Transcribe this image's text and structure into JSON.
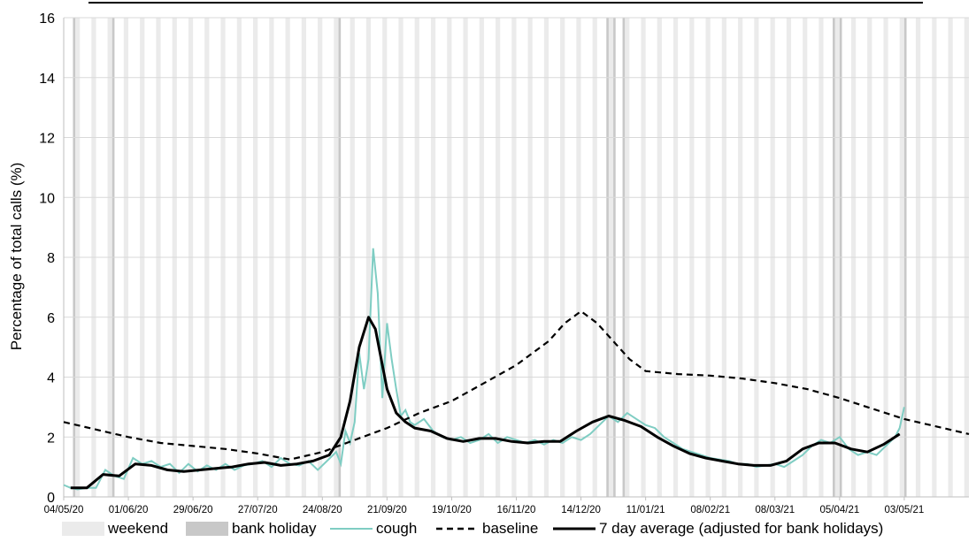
{
  "chart_data": {
    "type": "line",
    "title": "",
    "xlabel": "",
    "ylabel": "Percentage of total calls (%)",
    "ylim": [
      0,
      16
    ],
    "yticks": [
      0,
      2,
      4,
      6,
      8,
      10,
      12,
      14,
      16
    ],
    "xlim": [
      "2020-05-04",
      "2021-05-31"
    ],
    "xtick_labels": [
      "04/05/20",
      "01/06/20",
      "29/06/20",
      "27/07/20",
      "24/08/20",
      "21/09/20",
      "19/10/20",
      "16/11/20",
      "14/12/20",
      "11/01/21",
      "08/02/21",
      "08/03/21",
      "05/04/21",
      "03/05/21"
    ],
    "xtick_dates": [
      "2020-05-04",
      "2020-06-01",
      "2020-06-29",
      "2020-07-27",
      "2020-08-24",
      "2020-09-21",
      "2020-10-19",
      "2020-11-16",
      "2020-12-14",
      "2021-01-11",
      "2021-02-08",
      "2021-03-08",
      "2021-04-05",
      "2021-05-03"
    ],
    "grid": "horizontal",
    "legend_position": "bottom",
    "legend": [
      {
        "key": "weekend",
        "label": "weekend",
        "style": "box",
        "color": "#ebebeb"
      },
      {
        "key": "bank_holiday",
        "label": "bank holiday",
        "style": "box",
        "color": "#c8c8c8"
      },
      {
        "key": "cough",
        "label": "cough",
        "style": "solid",
        "color": "#7fcdc3"
      },
      {
        "key": "baseline",
        "label": "baseline",
        "style": "dashed",
        "color": "#000000"
      },
      {
        "key": "avg",
        "label": "7 day average (adjusted for bank holidays)",
        "style": "solid-thick",
        "color": "#000000"
      }
    ],
    "bank_holidays": [
      "2020-05-08",
      "2020-05-25",
      "2020-08-31",
      "2020-12-25",
      "2020-12-28",
      "2021-01-01",
      "2021-04-02",
      "2021-04-05",
      "2021-05-03"
    ],
    "series": [
      {
        "name": "cough",
        "color": "#7fcdc3",
        "x": [
          "2020-05-04",
          "2020-05-07",
          "2020-05-10",
          "2020-05-14",
          "2020-05-18",
          "2020-05-22",
          "2020-05-26",
          "2020-05-30",
          "2020-06-03",
          "2020-06-07",
          "2020-06-11",
          "2020-06-15",
          "2020-06-19",
          "2020-06-23",
          "2020-06-27",
          "2020-07-01",
          "2020-07-05",
          "2020-07-09",
          "2020-07-13",
          "2020-07-17",
          "2020-07-21",
          "2020-07-25",
          "2020-07-29",
          "2020-08-02",
          "2020-08-06",
          "2020-08-10",
          "2020-08-14",
          "2020-08-18",
          "2020-08-22",
          "2020-08-26",
          "2020-08-30",
          "2020-09-01",
          "2020-09-03",
          "2020-09-05",
          "2020-09-07",
          "2020-09-09",
          "2020-09-11",
          "2020-09-13",
          "2020-09-15",
          "2020-09-17",
          "2020-09-19",
          "2020-09-21",
          "2020-09-23",
          "2020-09-25",
          "2020-09-27",
          "2020-09-29",
          "2020-10-01",
          "2020-10-03",
          "2020-10-07",
          "2020-10-11",
          "2020-10-15",
          "2020-10-19",
          "2020-10-23",
          "2020-10-27",
          "2020-10-31",
          "2020-11-04",
          "2020-11-08",
          "2020-11-12",
          "2020-11-16",
          "2020-11-20",
          "2020-11-24",
          "2020-11-28",
          "2020-12-02",
          "2020-12-06",
          "2020-12-10",
          "2020-12-14",
          "2020-12-18",
          "2020-12-22",
          "2020-12-26",
          "2020-12-30",
          "2021-01-03",
          "2021-01-07",
          "2021-01-11",
          "2021-01-15",
          "2021-01-19",
          "2021-01-23",
          "2021-01-27",
          "2021-01-31",
          "2021-02-04",
          "2021-02-08",
          "2021-02-12",
          "2021-02-16",
          "2021-02-20",
          "2021-02-24",
          "2021-02-28",
          "2021-03-04",
          "2021-03-08",
          "2021-03-12",
          "2021-03-16",
          "2021-03-20",
          "2021-03-24",
          "2021-03-28",
          "2021-04-01",
          "2021-04-05",
          "2021-04-09",
          "2021-04-13",
          "2021-04-17",
          "2021-04-21",
          "2021-04-25",
          "2021-04-29",
          "2021-05-01",
          "2021-05-03"
        ],
        "values": [
          0.4,
          0.3,
          0.25,
          0.3,
          0.3,
          0.9,
          0.7,
          0.6,
          1.3,
          1.1,
          1.2,
          1.0,
          1.1,
          0.8,
          1.1,
          0.85,
          1.05,
          0.9,
          1.1,
          0.9,
          1.05,
          1.1,
          1.2,
          1.0,
          1.3,
          1.1,
          1.05,
          1.2,
          0.9,
          1.2,
          1.5,
          1.1,
          2.2,
          1.8,
          2.5,
          4.8,
          3.6,
          4.6,
          8.3,
          6.8,
          3.3,
          5.8,
          4.6,
          3.6,
          2.7,
          2.9,
          2.5,
          2.4,
          2.6,
          2.2,
          2.0,
          1.9,
          2.0,
          1.8,
          1.9,
          2.1,
          1.8,
          2.0,
          1.9,
          1.8,
          1.9,
          1.75,
          1.9,
          1.8,
          2.0,
          1.9,
          2.1,
          2.4,
          2.7,
          2.5,
          2.8,
          2.6,
          2.4,
          2.3,
          2.0,
          1.8,
          1.6,
          1.5,
          1.4,
          1.3,
          1.25,
          1.2,
          1.1,
          1.1,
          1.0,
          1.05,
          1.1,
          1.0,
          1.2,
          1.4,
          1.7,
          1.9,
          1.8,
          2.0,
          1.6,
          1.4,
          1.5,
          1.4,
          1.7,
          2.0,
          2.3,
          3.0
        ]
      },
      {
        "name": "baseline",
        "color": "#000000",
        "x": [
          "2020-05-04",
          "2020-05-18",
          "2020-06-01",
          "2020-06-15",
          "2020-06-29",
          "2020-07-13",
          "2020-07-27",
          "2020-08-10",
          "2020-08-24",
          "2020-09-07",
          "2020-09-21",
          "2020-10-05",
          "2020-10-19",
          "2020-11-02",
          "2020-11-16",
          "2020-11-30",
          "2020-12-07",
          "2020-12-14",
          "2020-12-21",
          "2020-12-28",
          "2021-01-04",
          "2021-01-11",
          "2021-01-25",
          "2021-02-08",
          "2021-02-22",
          "2021-03-08",
          "2021-03-22",
          "2021-04-05",
          "2021-04-19",
          "2021-05-03",
          "2021-05-17",
          "2021-05-31"
        ],
        "values": [
          2.5,
          2.25,
          2.0,
          1.8,
          1.7,
          1.6,
          1.45,
          1.25,
          1.5,
          1.9,
          2.3,
          2.8,
          3.2,
          3.8,
          4.4,
          5.2,
          5.8,
          6.2,
          5.8,
          5.2,
          4.6,
          4.2,
          4.1,
          4.05,
          3.95,
          3.8,
          3.6,
          3.3,
          2.95,
          2.6,
          2.35,
          2.1
        ]
      },
      {
        "name": "7 day average (adjusted for bank holidays)",
        "color": "#000000",
        "x": [
          "2020-05-07",
          "2020-05-14",
          "2020-05-21",
          "2020-05-28",
          "2020-06-04",
          "2020-06-11",
          "2020-06-18",
          "2020-06-25",
          "2020-07-02",
          "2020-07-09",
          "2020-07-16",
          "2020-07-23",
          "2020-07-30",
          "2020-08-06",
          "2020-08-13",
          "2020-08-20",
          "2020-08-27",
          "2020-09-01",
          "2020-09-05",
          "2020-09-09",
          "2020-09-13",
          "2020-09-16",
          "2020-09-18",
          "2020-09-21",
          "2020-09-25",
          "2020-09-29",
          "2020-10-03",
          "2020-10-10",
          "2020-10-17",
          "2020-10-24",
          "2020-10-31",
          "2020-11-07",
          "2020-11-14",
          "2020-11-21",
          "2020-11-28",
          "2020-12-05",
          "2020-12-12",
          "2020-12-19",
          "2020-12-26",
          "2021-01-02",
          "2021-01-09",
          "2021-01-16",
          "2021-01-23",
          "2021-01-30",
          "2021-02-06",
          "2021-02-13",
          "2021-02-20",
          "2021-02-27",
          "2021-03-06",
          "2021-03-13",
          "2021-03-20",
          "2021-03-27",
          "2021-04-03",
          "2021-04-10",
          "2021-04-17",
          "2021-04-24",
          "2021-05-01"
        ],
        "values": [
          0.3,
          0.3,
          0.75,
          0.7,
          1.1,
          1.05,
          0.9,
          0.85,
          0.9,
          0.95,
          1.0,
          1.1,
          1.15,
          1.05,
          1.1,
          1.2,
          1.4,
          2.0,
          3.2,
          5.0,
          6.0,
          5.6,
          4.8,
          3.6,
          2.8,
          2.5,
          2.3,
          2.2,
          1.95,
          1.85,
          1.95,
          1.95,
          1.85,
          1.8,
          1.85,
          1.85,
          2.2,
          2.5,
          2.7,
          2.55,
          2.35,
          2.0,
          1.7,
          1.45,
          1.3,
          1.2,
          1.1,
          1.05,
          1.05,
          1.2,
          1.6,
          1.8,
          1.8,
          1.6,
          1.5,
          1.75,
          2.1
        ]
      }
    ]
  }
}
